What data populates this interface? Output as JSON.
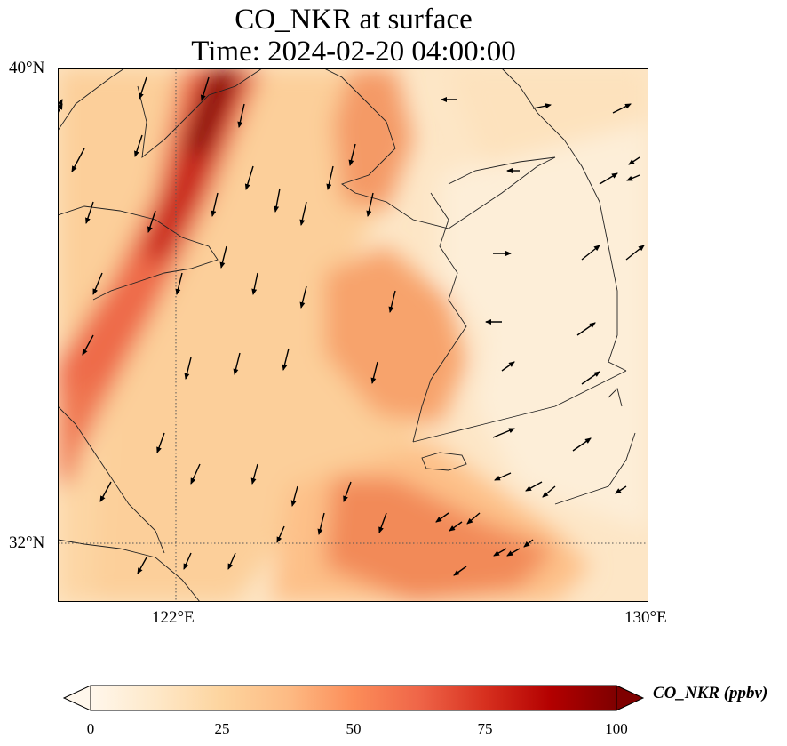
{
  "title": {
    "line1": "CO_NKR at surface",
    "line2": "Time: 2024-02-20 04:00:00"
  },
  "map": {
    "lat_ticks": [
      "40°N",
      "32°N"
    ],
    "lon_ticks": [
      "122°E",
      "130°E"
    ],
    "extent": {
      "lon_min": 120,
      "lon_max": 130,
      "lat_min": 31,
      "lat_max": 40
    },
    "gridlines": {
      "lon": 122,
      "lat": 32,
      "style": "dotted"
    },
    "field": "CO_NKR",
    "units": "ppbv"
  },
  "colorbar": {
    "label": "CO_NKR (ppbv)",
    "ticks": [
      "0",
      "25",
      "50",
      "75",
      "100"
    ],
    "min": 0,
    "max": 100,
    "extend": "both",
    "colormap": "OrRd",
    "colors": [
      "#fff7ec",
      "#fee8c8",
      "#fdd49e",
      "#fdbb84",
      "#fc8d59",
      "#ef6548",
      "#d7301f",
      "#b30000",
      "#7f0000"
    ]
  }
}
